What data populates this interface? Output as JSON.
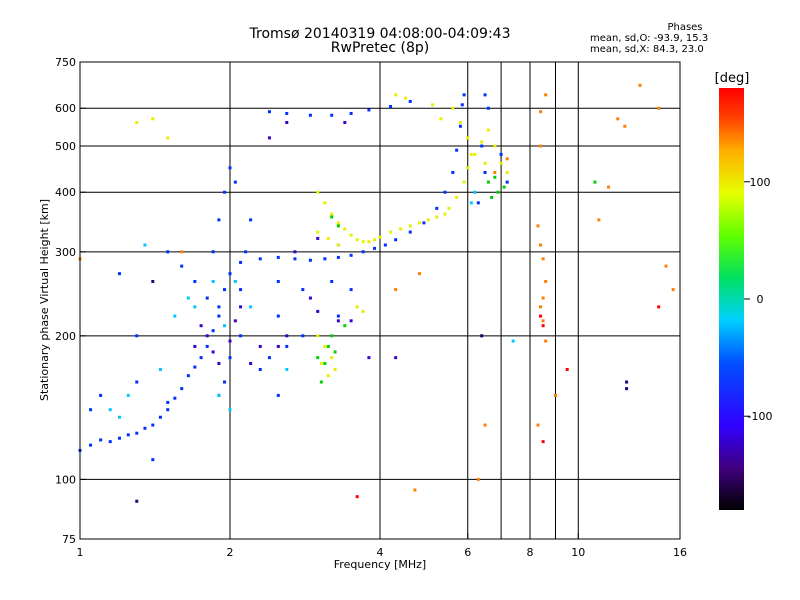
{
  "title_line1": "Tromsø 20140319 04:08:00-04:09:43",
  "title_line2": "RwPretec (8p)",
  "stats": {
    "heading": "Phases",
    "o_line": "mean, sd,O: -93.9, 15.3",
    "x_line": "mean, sd,X:  84.3, 23.0"
  },
  "colorbar": {
    "label": "[deg]",
    "range": [
      -180,
      180
    ],
    "ticks": [
      "100",
      "0",
      "-100"
    ],
    "tick_values": [
      100,
      0,
      -100
    ]
  },
  "chart_data": {
    "type": "scatter",
    "xlabel": "Frequency [MHz]",
    "ylabel": "Stationary phase Virtual Height [km]",
    "xscale": "log",
    "yscale": "log",
    "xlim": [
      1,
      16
    ],
    "ylim": [
      75,
      750
    ],
    "xticks": [
      1,
      2,
      4,
      6,
      8,
      10,
      16
    ],
    "yticks": [
      75,
      100,
      200,
      300,
      400,
      500,
      600,
      750
    ],
    "grid_x": [
      2,
      4,
      6,
      7,
      8,
      9,
      10
    ],
    "grid_y": [
      100,
      200,
      300,
      400,
      500,
      600
    ],
    "color_variable": "phase [deg]",
    "series": [
      {
        "color": "#0030ff",
        "points": [
          [
            1.0,
            115
          ],
          [
            1.05,
            118
          ],
          [
            1.1,
            121
          ],
          [
            1.15,
            120
          ],
          [
            1.2,
            122
          ],
          [
            1.25,
            124
          ],
          [
            1.3,
            125
          ],
          [
            1.35,
            128
          ],
          [
            1.4,
            130
          ],
          [
            1.45,
            135
          ],
          [
            1.5,
            140
          ],
          [
            1.55,
            148
          ],
          [
            1.6,
            155
          ],
          [
            1.65,
            165
          ],
          [
            1.7,
            172
          ],
          [
            1.75,
            180
          ],
          [
            1.8,
            190
          ],
          [
            1.85,
            205
          ],
          [
            1.9,
            220
          ],
          [
            1.95,
            250
          ],
          [
            2.0,
            270
          ],
          [
            2.1,
            285
          ],
          [
            2.3,
            290
          ],
          [
            2.5,
            292
          ],
          [
            2.7,
            290
          ],
          [
            2.9,
            288
          ],
          [
            3.1,
            290
          ],
          [
            3.3,
            292
          ],
          [
            3.5,
            295
          ],
          [
            3.7,
            300
          ],
          [
            3.9,
            305
          ],
          [
            4.1,
            310
          ],
          [
            4.3,
            318
          ],
          [
            4.6,
            330
          ],
          [
            4.9,
            345
          ],
          [
            5.2,
            370
          ],
          [
            5.4,
            400
          ],
          [
            5.6,
            440
          ],
          [
            5.7,
            490
          ],
          [
            5.8,
            550
          ],
          [
            5.85,
            610
          ],
          [
            5.9,
            640
          ],
          [
            2.4,
            590
          ],
          [
            2.6,
            585
          ],
          [
            2.9,
            580
          ],
          [
            3.2,
            580
          ],
          [
            3.5,
            585
          ],
          [
            3.8,
            595
          ],
          [
            4.2,
            605
          ],
          [
            4.6,
            620
          ],
          [
            1.5,
            300
          ],
          [
            1.6,
            280
          ],
          [
            1.7,
            260
          ],
          [
            1.8,
            240
          ],
          [
            1.9,
            230
          ],
          [
            1.85,
            300
          ],
          [
            1.9,
            350
          ],
          [
            1.95,
            400
          ],
          [
            2.0,
            450
          ],
          [
            2.05,
            420
          ],
          [
            2.0,
            180
          ],
          [
            1.95,
            160
          ],
          [
            1.9,
            150
          ],
          [
            2.1,
            200
          ],
          [
            2.1,
            250
          ],
          [
            2.15,
            300
          ],
          [
            2.2,
            350
          ],
          [
            2.5,
            260
          ],
          [
            2.5,
            220
          ],
          [
            2.6,
            190
          ],
          [
            2.8,
            250
          ],
          [
            2.8,
            200
          ],
          [
            3.2,
            260
          ],
          [
            3.3,
            220
          ],
          [
            3.5,
            250
          ],
          [
            6.5,
            640
          ],
          [
            6.6,
            600
          ],
          [
            6.4,
            500
          ],
          [
            6.5,
            440
          ],
          [
            6.3,
            380
          ],
          [
            7.2,
            420
          ],
          [
            7.0,
            480
          ],
          [
            1.3,
            200
          ],
          [
            1.2,
            270
          ],
          [
            1.1,
            150
          ],
          [
            1.05,
            140
          ],
          [
            1.3,
            160
          ],
          [
            1.4,
            110
          ],
          [
            1.5,
            145
          ],
          [
            2.3,
            170
          ],
          [
            2.4,
            180
          ],
          [
            2.5,
            150
          ]
        ]
      },
      {
        "color": "#3a00c8",
        "points": [
          [
            1.7,
            190
          ],
          [
            1.75,
            210
          ],
          [
            1.8,
            200
          ],
          [
            1.85,
            185
          ],
          [
            1.9,
            175
          ],
          [
            2.0,
            195
          ],
          [
            2.05,
            215
          ],
          [
            2.1,
            230
          ],
          [
            2.2,
            175
          ],
          [
            2.3,
            190
          ],
          [
            2.5,
            190
          ],
          [
            2.6,
            200
          ],
          [
            2.9,
            240
          ],
          [
            3.0,
            225
          ],
          [
            3.3,
            215
          ],
          [
            3.5,
            215
          ],
          [
            3.8,
            180
          ],
          [
            4.3,
            180
          ],
          [
            2.4,
            520
          ],
          [
            2.6,
            560
          ],
          [
            3.4,
            560
          ],
          [
            2.7,
            300
          ],
          [
            3.0,
            320
          ],
          [
            3.3,
            310
          ]
        ]
      },
      {
        "color": "#00c8ff",
        "points": [
          [
            1.15,
            140
          ],
          [
            1.2,
            135
          ],
          [
            1.25,
            150
          ],
          [
            1.45,
            170
          ],
          [
            1.55,
            220
          ],
          [
            1.65,
            240
          ],
          [
            1.7,
            230
          ],
          [
            1.85,
            260
          ],
          [
            1.95,
            210
          ],
          [
            2.05,
            260
          ],
          [
            2.2,
            230
          ],
          [
            2.6,
            170
          ],
          [
            6.1,
            380
          ],
          [
            6.2,
            400
          ],
          [
            7.4,
            195
          ],
          [
            1.35,
            310
          ],
          [
            1.9,
            150
          ],
          [
            2.0,
            140
          ]
        ]
      },
      {
        "color": "#e6f000",
        "points": [
          [
            3.0,
            400
          ],
          [
            3.1,
            380
          ],
          [
            3.2,
            360
          ],
          [
            3.3,
            345
          ],
          [
            3.4,
            335
          ],
          [
            3.5,
            325
          ],
          [
            3.6,
            318
          ],
          [
            3.7,
            315
          ],
          [
            3.8,
            315
          ],
          [
            3.9,
            318
          ],
          [
            4.0,
            322
          ],
          [
            4.2,
            330
          ],
          [
            4.4,
            335
          ],
          [
            4.6,
            340
          ],
          [
            4.8,
            345
          ],
          [
            5.0,
            350
          ],
          [
            5.2,
            355
          ],
          [
            5.4,
            360
          ],
          [
            5.5,
            370
          ],
          [
            5.7,
            390
          ],
          [
            5.9,
            420
          ],
          [
            6.0,
            450
          ],
          [
            6.2,
            480
          ],
          [
            6.4,
            510
          ],
          [
            6.6,
            540
          ],
          [
            6.8,
            500
          ],
          [
            7.0,
            460
          ],
          [
            7.2,
            440
          ],
          [
            5.6,
            600
          ],
          [
            5.8,
            560
          ],
          [
            6.0,
            520
          ],
          [
            6.1,
            480
          ],
          [
            3.0,
            330
          ],
          [
            3.15,
            320
          ],
          [
            3.3,
            310
          ],
          [
            3.0,
            200
          ],
          [
            3.1,
            190
          ],
          [
            3.2,
            180
          ],
          [
            3.05,
            175
          ],
          [
            3.15,
            165
          ],
          [
            3.25,
            170
          ],
          [
            3.6,
            230
          ],
          [
            3.7,
            225
          ],
          [
            4.3,
            640
          ],
          [
            4.5,
            630
          ],
          [
            1.3,
            560
          ],
          [
            1.4,
            570
          ],
          [
            1.5,
            520
          ],
          [
            5.1,
            610
          ],
          [
            5.3,
            570
          ],
          [
            6.5,
            460
          ]
        ]
      },
      {
        "color": "#00d000",
        "points": [
          [
            3.2,
            355
          ],
          [
            3.3,
            340
          ],
          [
            3.0,
            180
          ],
          [
            3.1,
            175
          ],
          [
            3.2,
            200
          ],
          [
            3.15,
            190
          ],
          [
            3.25,
            185
          ],
          [
            3.05,
            160
          ],
          [
            6.7,
            390
          ],
          [
            6.9,
            400
          ],
          [
            7.1,
            410
          ],
          [
            6.6,
            420
          ],
          [
            6.8,
            430
          ],
          [
            3.4,
            210
          ],
          [
            10.8,
            420
          ]
        ]
      },
      {
        "color": "#ff8000",
        "points": [
          [
            1.0,
            290
          ],
          [
            1.6,
            300
          ],
          [
            4.3,
            250
          ],
          [
            4.8,
            270
          ],
          [
            4.7,
            95
          ],
          [
            6.4,
            200
          ],
          [
            6.3,
            100
          ],
          [
            6.5,
            130
          ],
          [
            8.4,
            500
          ],
          [
            8.4,
            590
          ],
          [
            8.6,
            640
          ],
          [
            8.3,
            340
          ],
          [
            8.4,
            310
          ],
          [
            8.5,
            290
          ],
          [
            8.6,
            260
          ],
          [
            8.5,
            240
          ],
          [
            8.4,
            230
          ],
          [
            8.5,
            215
          ],
          [
            8.6,
            195
          ],
          [
            9.0,
            150
          ],
          [
            11.0,
            350
          ],
          [
            11.5,
            410
          ],
          [
            12.0,
            570
          ],
          [
            12.4,
            550
          ],
          [
            13.3,
            670
          ],
          [
            14.5,
            600
          ],
          [
            15.0,
            280
          ],
          [
            15.5,
            250
          ],
          [
            6.8,
            440
          ],
          [
            7.2,
            470
          ],
          [
            8.3,
            130
          ]
        ]
      },
      {
        "color": "#ff0000",
        "points": [
          [
            8.5,
            210
          ],
          [
            8.4,
            220
          ],
          [
            9.5,
            170
          ],
          [
            8.5,
            120
          ],
          [
            3.6,
            92
          ],
          [
            14.5,
            230
          ]
        ]
      },
      {
        "color": "#20007a",
        "points": [
          [
            6.4,
            200
          ],
          [
            12.5,
            160
          ],
          [
            12.5,
            155
          ],
          [
            1.4,
            260
          ],
          [
            1.3,
            90
          ]
        ]
      }
    ]
  }
}
